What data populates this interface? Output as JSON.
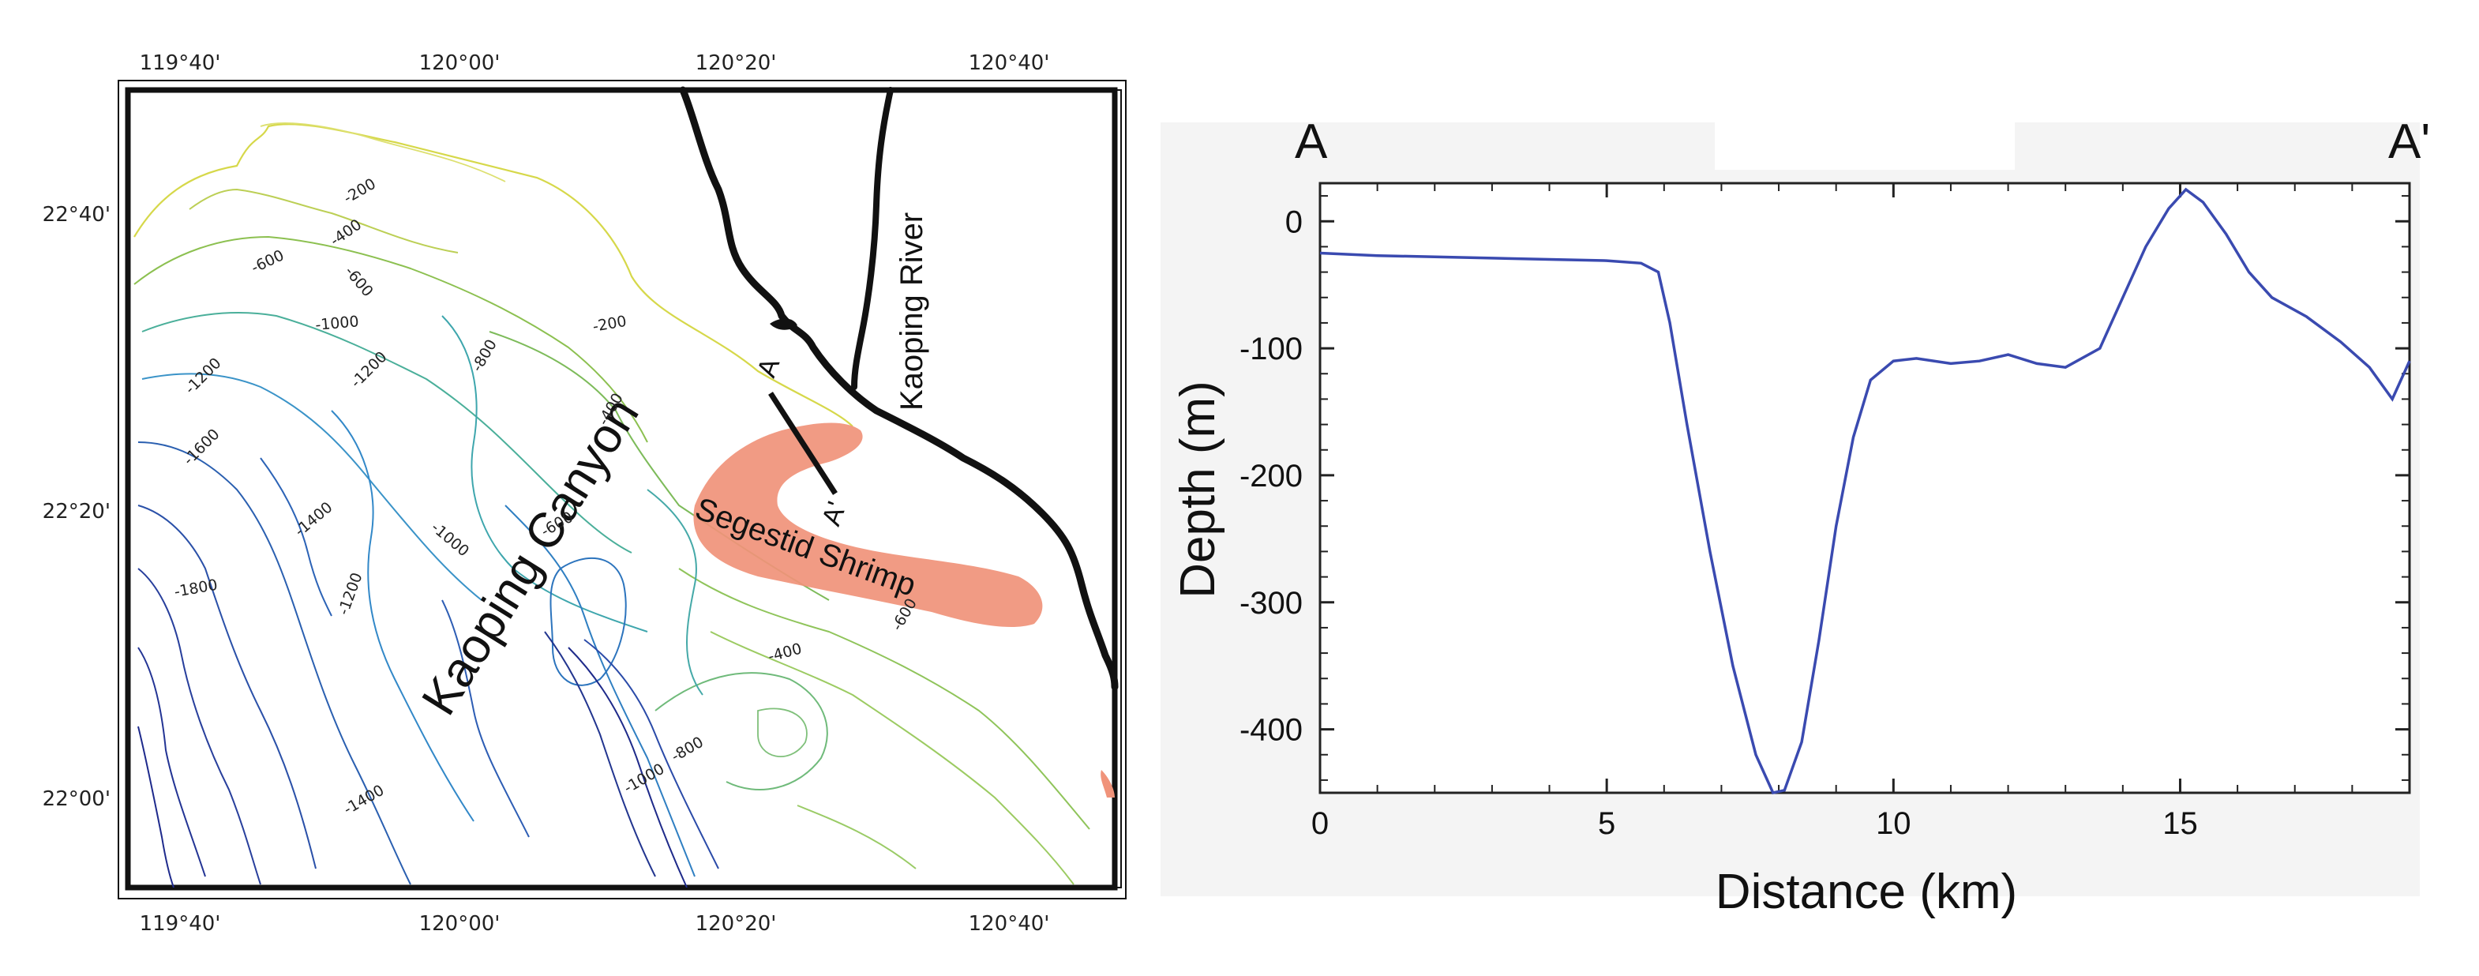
{
  "map": {
    "lon_ticks": [
      "119°40'",
      "120°00'",
      "120°20'",
      "120°40'"
    ],
    "lat_ticks": [
      "22°40'",
      "22°20'",
      "22°00'"
    ],
    "labels": {
      "canyon": "Kaoping Canyon",
      "river": "Kaoping River",
      "shrimp": "Segestid Shrimp",
      "transect_start": "A",
      "transect_end": "A'"
    },
    "contour_labels": [
      "-200",
      "-200",
      "-400",
      "-400",
      "-400",
      "-600",
      "-600",
      "-600",
      "-600",
      "-800",
      "-800",
      "-1000",
      "-1000",
      "-1000",
      "-1200",
      "-1200",
      "-1200",
      "-1400",
      "-1400",
      "-1600",
      "-1800"
    ],
    "colors": {
      "shrimp_area": "#f0937a",
      "coast": "#111111",
      "deep": "#1a1f8c",
      "shallow": "#d6d84a"
    }
  },
  "chart_data": {
    "type": "line",
    "title": "",
    "corner_labels": [
      "A",
      "A'"
    ],
    "xlabel": "Distance (km)",
    "ylabel": "Depth (m)",
    "xlim": [
      0,
      19
    ],
    "ylim": [
      -450,
      30
    ],
    "x_ticks": [
      0,
      5,
      10,
      15
    ],
    "y_ticks": [
      0,
      -100,
      -200,
      -300,
      -400
    ],
    "series": [
      {
        "color": "#3a4ab0",
        "x": [
          0,
          1,
          2,
          3,
          4,
          5,
          5.6,
          5.9,
          6.1,
          6.4,
          6.8,
          7.2,
          7.6,
          7.9,
          8.1,
          8.4,
          8.7,
          9.0,
          9.3,
          9.6,
          10.0,
          10.4,
          11.0,
          11.5,
          12.0,
          12.5,
          13.0,
          13.6,
          14.0,
          14.4,
          14.8,
          15.1,
          15.4,
          15.8,
          16.2,
          16.6,
          17.2,
          17.8,
          18.3,
          18.7,
          19.0
        ],
        "y": [
          -25,
          -27,
          -28,
          -29,
          -30,
          -31,
          -33,
          -40,
          -80,
          -160,
          -260,
          -350,
          -420,
          -450,
          -448,
          -410,
          -330,
          -240,
          -170,
          -125,
          -110,
          -108,
          -112,
          -110,
          -105,
          -112,
          -115,
          -100,
          -60,
          -20,
          10,
          25,
          15,
          -10,
          -40,
          -60,
          -75,
          -95,
          -115,
          -140,
          -110
        ]
      }
    ]
  }
}
